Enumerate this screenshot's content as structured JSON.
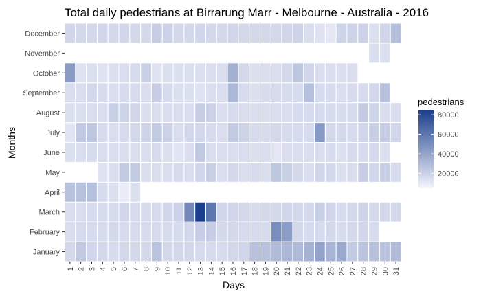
{
  "chart_data": {
    "type": "heatmap",
    "title": "Total daily pedestrians at Birrarung Marr - Melbourne - Australia - 2016",
    "xlabel": "Days",
    "ylabel": "Months",
    "x_categories": [
      "1",
      "2",
      "3",
      "4",
      "5",
      "6",
      "7",
      "8",
      "9",
      "10",
      "11",
      "12",
      "13",
      "14",
      "15",
      "16",
      "17",
      "18",
      "19",
      "20",
      "21",
      "22",
      "23",
      "24",
      "25",
      "26",
      "27",
      "28",
      "29",
      "30",
      "31"
    ],
    "y_categories": [
      "January",
      "February",
      "March",
      "April",
      "May",
      "June",
      "July",
      "August",
      "September",
      "October",
      "November",
      "December"
    ],
    "legend": {
      "title": "pedestrians",
      "ticks": [
        20000,
        40000,
        60000,
        80000
      ],
      "tick_labels": [
        "20000",
        "40000",
        "60000",
        "80000"
      ],
      "range": [
        5000,
        85000
      ],
      "low_color": "#f4f4fc",
      "high_color": "#1a3e8c",
      "position": "right"
    },
    "grid": false,
    "values": {
      "January": [
        17000,
        24000,
        18000,
        17000,
        16000,
        17000,
        17000,
        17000,
        26000,
        17000,
        17000,
        17000,
        16000,
        16000,
        16000,
        17000,
        18000,
        27000,
        27000,
        30000,
        32000,
        30000,
        34000,
        41000,
        33000,
        38000,
        23000,
        26000,
        27000,
        26000,
        29000
      ],
      "February": [
        15000,
        16000,
        16000,
        16000,
        17000,
        16000,
        16000,
        16000,
        16000,
        16000,
        16000,
        17000,
        22000,
        22000,
        17000,
        17000,
        16000,
        16000,
        16000,
        50000,
        43000,
        17000,
        16000,
        16000,
        17000,
        16000,
        17000,
        18000,
        16000,
        null,
        null
      ],
      "March": [
        15000,
        15000,
        16000,
        16000,
        16000,
        18000,
        16000,
        16000,
        16000,
        18000,
        20000,
        52000,
        85000,
        60000,
        18000,
        18000,
        17000,
        16000,
        17000,
        17000,
        18000,
        17000,
        17000,
        21000,
        18000,
        16000,
        17000,
        19000,
        17000,
        17000,
        17000
      ],
      "April": [
        27000,
        27000,
        28000,
        16000,
        14000,
        9000,
        14000,
        null,
        null,
        null,
        null,
        null,
        null,
        null,
        null,
        null,
        null,
        null,
        null,
        null,
        null,
        null,
        null,
        null,
        null,
        null,
        null,
        null,
        null,
        null,
        null
      ],
      "May": [
        null,
        null,
        null,
        13000,
        15000,
        23000,
        23000,
        15000,
        15000,
        15000,
        16000,
        15000,
        18000,
        21000,
        15000,
        17000,
        15000,
        16000,
        15000,
        25000,
        21000,
        17000,
        15000,
        18000,
        17000,
        14000,
        15000,
        22000,
        18000,
        21000,
        16000
      ],
      "June": [
        14000,
        15000,
        16000,
        15000,
        15000,
        15000,
        15000,
        15000,
        16000,
        14000,
        12000,
        15000,
        24000,
        15000,
        15000,
        15000,
        15000,
        14000,
        15000,
        11000,
        15000,
        15000,
        15000,
        15000,
        16000,
        14000,
        16000,
        16000,
        17000,
        14000,
        null
      ],
      "July": [
        12000,
        24000,
        25000,
        16000,
        15000,
        16000,
        17000,
        19000,
        23000,
        20000,
        15000,
        17000,
        17000,
        16000,
        15000,
        23000,
        19000,
        16000,
        16000,
        17000,
        16000,
        16000,
        16000,
        45000,
        17000,
        17000,
        16000,
        18000,
        21000,
        22000,
        18000
      ],
      "August": [
        14000,
        14000,
        15000,
        15000,
        21000,
        19000,
        18000,
        15000,
        15000,
        15000,
        15000,
        15000,
        22000,
        20000,
        15000,
        16000,
        15000,
        15000,
        15000,
        15000,
        15000,
        16000,
        16000,
        16000,
        16000,
        16000,
        16000,
        23000,
        19000,
        15000,
        15000
      ],
      "September": [
        15000,
        15000,
        17000,
        16000,
        15000,
        16000,
        16000,
        15000,
        22000,
        16000,
        14000,
        14000,
        13000,
        15000,
        15000,
        31000,
        16000,
        14000,
        16000,
        16000,
        16000,
        16000,
        28000,
        16000,
        16000,
        15000,
        16000,
        16000,
        18000,
        27000,
        null
      ],
      "October": [
        44000,
        13000,
        14000,
        13000,
        14000,
        15000,
        16000,
        21000,
        13000,
        14000,
        14000,
        14000,
        14000,
        15000,
        15000,
        35000,
        17000,
        14000,
        15000,
        15000,
        17000,
        25000,
        18000,
        15000,
        15000,
        15000,
        15000,
        null,
        null,
        null,
        null
      ],
      "November": [
        null,
        null,
        null,
        null,
        null,
        null,
        null,
        null,
        null,
        null,
        null,
        null,
        null,
        null,
        null,
        null,
        null,
        null,
        null,
        null,
        null,
        null,
        null,
        null,
        null,
        null,
        null,
        null,
        15000,
        14000,
        null
      ],
      "December": [
        18000,
        17000,
        17000,
        18000,
        17000,
        18000,
        17000,
        17000,
        22000,
        20000,
        17000,
        17000,
        18000,
        17000,
        17000,
        18000,
        17000,
        17000,
        17000,
        17000,
        18000,
        19000,
        15000,
        13000,
        11000,
        19000,
        19000,
        20000,
        14000,
        18000,
        28000
      ]
    }
  }
}
